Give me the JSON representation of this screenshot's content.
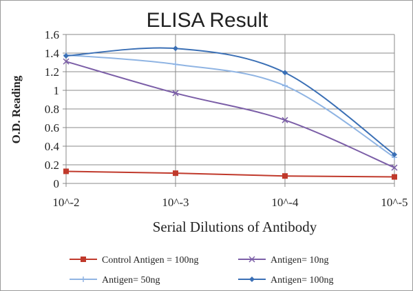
{
  "chart_data": {
    "type": "line",
    "title": "ELISA Result",
    "xlabel": "Serial Dilutions  of Antibody",
    "ylabel": "O.D. Reading",
    "categories": [
      "10^-2",
      "10^-3",
      "10^-4",
      "10^-5"
    ],
    "ylim": [
      0,
      1.6
    ],
    "yticks": [
      "0",
      "0.2",
      "0.4",
      "0.6",
      "0.8",
      "1",
      "1.2",
      "1.4",
      "1.6"
    ],
    "grid": true,
    "legend_position": "bottom",
    "series": [
      {
        "name": "Control Antigen = 100ng",
        "values": [
          0.13,
          0.11,
          0.08,
          0.07
        ],
        "color": "#c0392b",
        "marker": "square",
        "smooth": false
      },
      {
        "name": "Antigen= 10ng",
        "values": [
          1.31,
          0.97,
          0.68,
          0.17
        ],
        "color": "#7b5ea7",
        "marker": "x",
        "smooth": true
      },
      {
        "name": "Antigen= 50ng",
        "values": [
          1.38,
          1.28,
          1.05,
          0.28
        ],
        "color": "#8fb4e3",
        "marker": "plus",
        "smooth": true
      },
      {
        "name": "Antigen= 100ng",
        "values": [
          1.37,
          1.45,
          1.19,
          0.31
        ],
        "color": "#3a6fb5",
        "marker": "diamond",
        "smooth": true
      }
    ]
  }
}
